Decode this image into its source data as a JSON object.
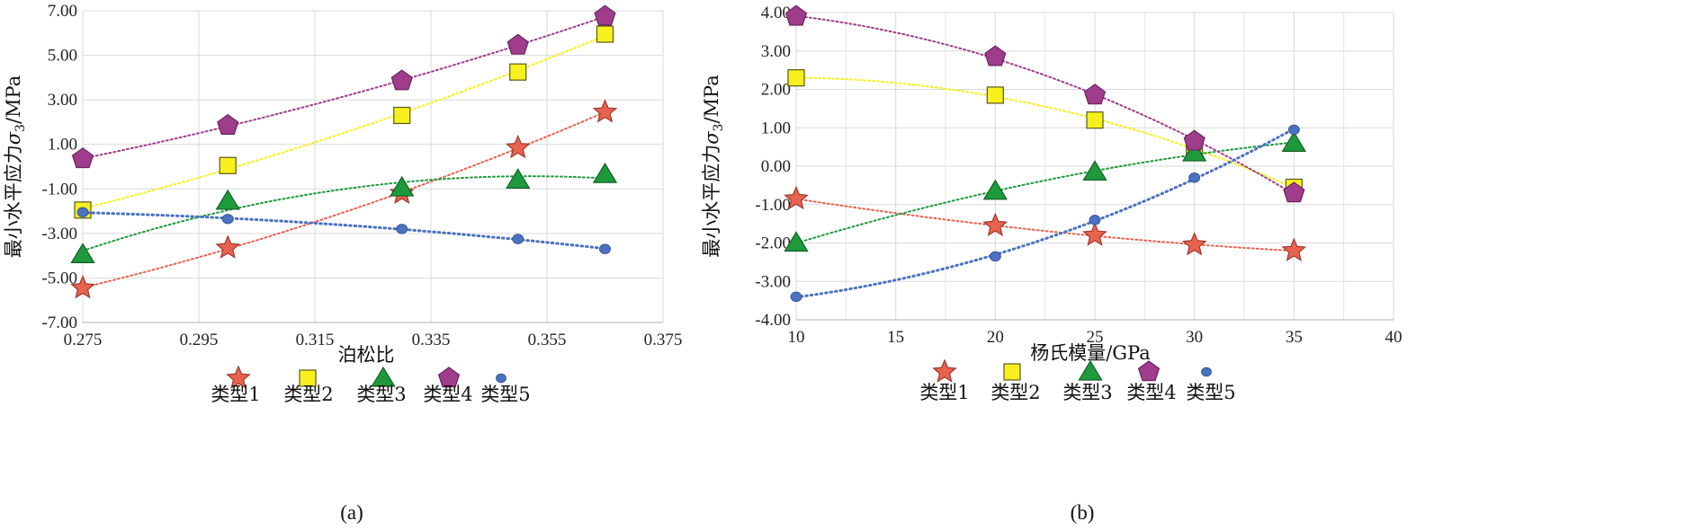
{
  "panels": [
    {
      "label": "(a)",
      "xlabel": "泊松比",
      "ylabel_prefix": "最小水平应力",
      "ylabel_symbol": "σ",
      "ylabel_sub": "3",
      "ylabel_unit": "/MPa"
    },
    {
      "label": "(b)",
      "xlabel": "杨氏模量/GPa",
      "ylabel_prefix": "最小水平应力",
      "ylabel_symbol": "σ",
      "ylabel_sub": "3",
      "ylabel_unit": "/MPa"
    }
  ],
  "series_styles": [
    {
      "name": "类型1",
      "marker": "star",
      "color": "#e8624f",
      "stroke": "#9c3a2c"
    },
    {
      "name": "类型2",
      "marker": "square",
      "color": "#f7f01e",
      "stroke": "#5a5a1a"
    },
    {
      "name": "类型3",
      "marker": "triangle",
      "color": "#1e9a3c",
      "stroke": "#125f24"
    },
    {
      "name": "类型4",
      "marker": "pentagon",
      "color": "#a03c8c",
      "stroke": "#6a2560"
    },
    {
      "name": "类型5",
      "marker": "circle",
      "color": "#4a72c0",
      "stroke": "#2e4f8f"
    }
  ],
  "chart_data": [
    {
      "type": "scatter",
      "xlabel": "泊松比",
      "ylabel": "最小水平应力σ3/MPa",
      "xlim": [
        0.275,
        0.375
      ],
      "ylim": [
        -7.0,
        7.0
      ],
      "x_ticks": [
        "0.275",
        "0.295",
        "0.315",
        "0.335",
        "0.355",
        "0.375"
      ],
      "y_ticks": [
        "7.00",
        "5.00",
        "3.00",
        "1.00",
        "-1.00",
        "-3.00",
        "-5.00",
        "-7.00"
      ],
      "grid": true,
      "legend": "bottom",
      "series": [
        {
          "name": "类型1",
          "x": [
            0.275,
            0.3,
            0.33,
            0.35,
            0.365
          ],
          "y": [
            -5.45,
            -3.65,
            -1.2,
            0.85,
            2.45
          ]
        },
        {
          "name": "类型2",
          "x": [
            0.275,
            0.3,
            0.33,
            0.35,
            0.365
          ],
          "y": [
            -1.95,
            0.05,
            2.3,
            4.25,
            5.95
          ]
        },
        {
          "name": "类型3",
          "x": [
            0.275,
            0.3,
            0.33,
            0.35,
            0.365
          ],
          "y": [
            -3.95,
            -1.55,
            -0.95,
            -0.6,
            -0.35
          ]
        },
        {
          "name": "类型4",
          "x": [
            0.275,
            0.3,
            0.33,
            0.35,
            0.365
          ],
          "y": [
            0.35,
            1.85,
            3.85,
            5.45,
            6.75
          ]
        },
        {
          "name": "类型5",
          "x": [
            0.275,
            0.3,
            0.33,
            0.35,
            0.365
          ],
          "y": [
            -2.05,
            -2.35,
            -2.8,
            -3.25,
            -3.7
          ]
        }
      ]
    },
    {
      "type": "scatter",
      "xlabel": "杨氏模量/GPa",
      "ylabel": "最小水平应力σ3/MPa",
      "xlim": [
        10,
        40
      ],
      "ylim": [
        -4.0,
        4.0
      ],
      "x_ticks": [
        "10",
        "15",
        "20",
        "25",
        "30",
        "35",
        "40"
      ],
      "y_ticks": [
        "4.00",
        "3.00",
        "2.00",
        "1.00",
        "0.00",
        "-1.00",
        "-2.00",
        "-3.00",
        "-4.00"
      ],
      "grid": true,
      "legend": "bottom",
      "series": [
        {
          "name": "类型1",
          "x": [
            10,
            20,
            25,
            30,
            35
          ],
          "y": [
            -0.85,
            -1.55,
            -1.8,
            -2.05,
            -2.2
          ]
        },
        {
          "name": "类型2",
          "x": [
            10,
            20,
            25,
            30,
            35
          ],
          "y": [
            2.3,
            1.85,
            1.2,
            0.45,
            -0.55
          ]
        },
        {
          "name": "类型3",
          "x": [
            10,
            20,
            25,
            30,
            35
          ],
          "y": [
            -2.0,
            -0.65,
            -0.15,
            0.35,
            0.6
          ]
        },
        {
          "name": "类型4",
          "x": [
            10,
            20,
            25,
            30,
            35
          ],
          "y": [
            3.9,
            2.85,
            1.85,
            0.65,
            -0.7
          ]
        },
        {
          "name": "类型5",
          "x": [
            10,
            20,
            25,
            30,
            35
          ],
          "y": [
            -3.4,
            -2.35,
            -1.4,
            -0.3,
            0.95
          ]
        }
      ]
    }
  ]
}
